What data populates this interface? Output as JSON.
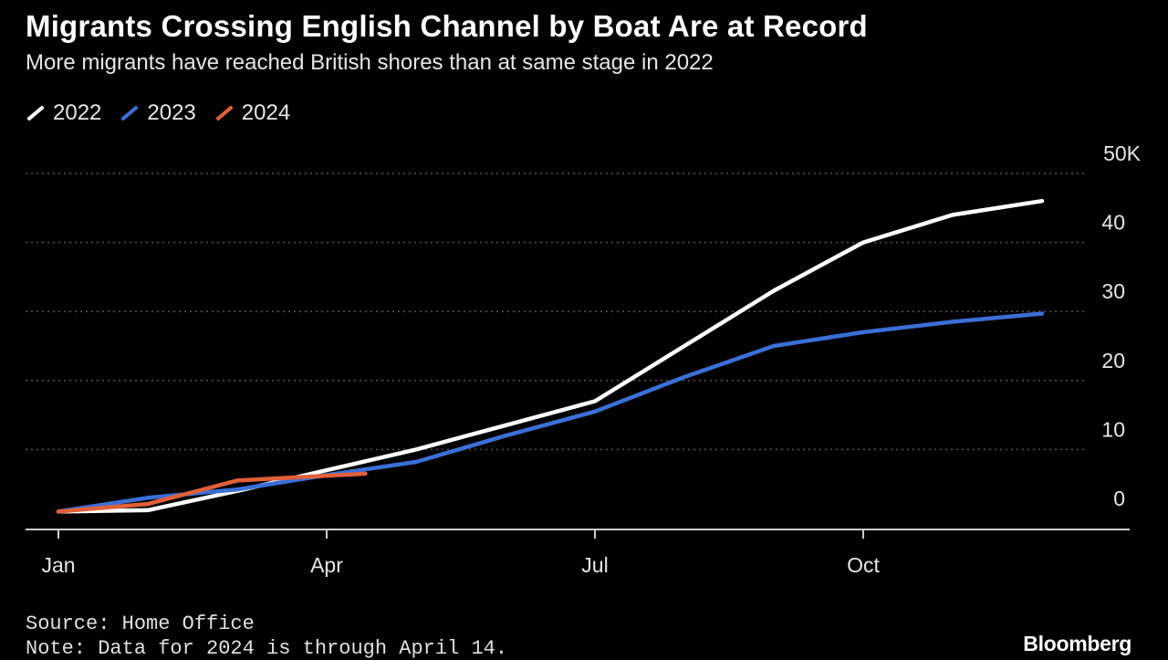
{
  "chart_data": {
    "type": "line",
    "title": "Migrants Crossing English Channel by Boat Are at Record",
    "subtitle": "More migrants have reached British shores than at same stage in 2022",
    "xlabel": "",
    "ylabel": "",
    "x_ticks": [
      "Jan",
      "Apr",
      "Jul",
      "Oct"
    ],
    "y_ticks": [
      "0",
      "10",
      "20",
      "30",
      "40",
      "50K"
    ],
    "ylim": [
      0,
      50000
    ],
    "grid": "horizontal dotted",
    "legend_position": "top-left",
    "series": [
      {
        "name": "2022",
        "color": "#ffffff",
        "points": [
          [
            "Jan 1",
            1000
          ],
          [
            "Feb 1",
            1200
          ],
          [
            "Mar 1",
            4000
          ],
          [
            "Apr 1",
            7000
          ],
          [
            "May 1",
            10000
          ],
          [
            "Jun 1",
            13500
          ],
          [
            "Jul 1",
            17000
          ],
          [
            "Aug 1",
            25000
          ],
          [
            "Sep 1",
            33000
          ],
          [
            "Oct 1",
            40000
          ],
          [
            "Nov 1",
            44000
          ],
          [
            "Dec 1",
            46000
          ]
        ]
      },
      {
        "name": "2023",
        "color": "#3b6fd6",
        "points": [
          [
            "Jan 1",
            1000
          ],
          [
            "Feb 1",
            3000
          ],
          [
            "Mar 1",
            4200
          ],
          [
            "Apr 1",
            6300
          ],
          [
            "May 1",
            8200
          ],
          [
            "Jun 1",
            12000
          ],
          [
            "Jul 1",
            15500
          ],
          [
            "Aug 1",
            20500
          ],
          [
            "Sep 1",
            25000
          ],
          [
            "Oct 1",
            27000
          ],
          [
            "Nov 1",
            28500
          ],
          [
            "Dec 1",
            29700
          ]
        ]
      },
      {
        "name": "2024",
        "color": "#e0603a",
        "points": [
          [
            "Jan 1",
            1000
          ],
          [
            "Feb 1",
            2100
          ],
          [
            "Mar 1",
            5500
          ],
          [
            "Apr 14",
            6500
          ]
        ]
      }
    ]
  },
  "footer": {
    "source": "Source: Home Office",
    "note": "Note: Data for 2024 is through April 14.",
    "brand": "Bloomberg"
  }
}
